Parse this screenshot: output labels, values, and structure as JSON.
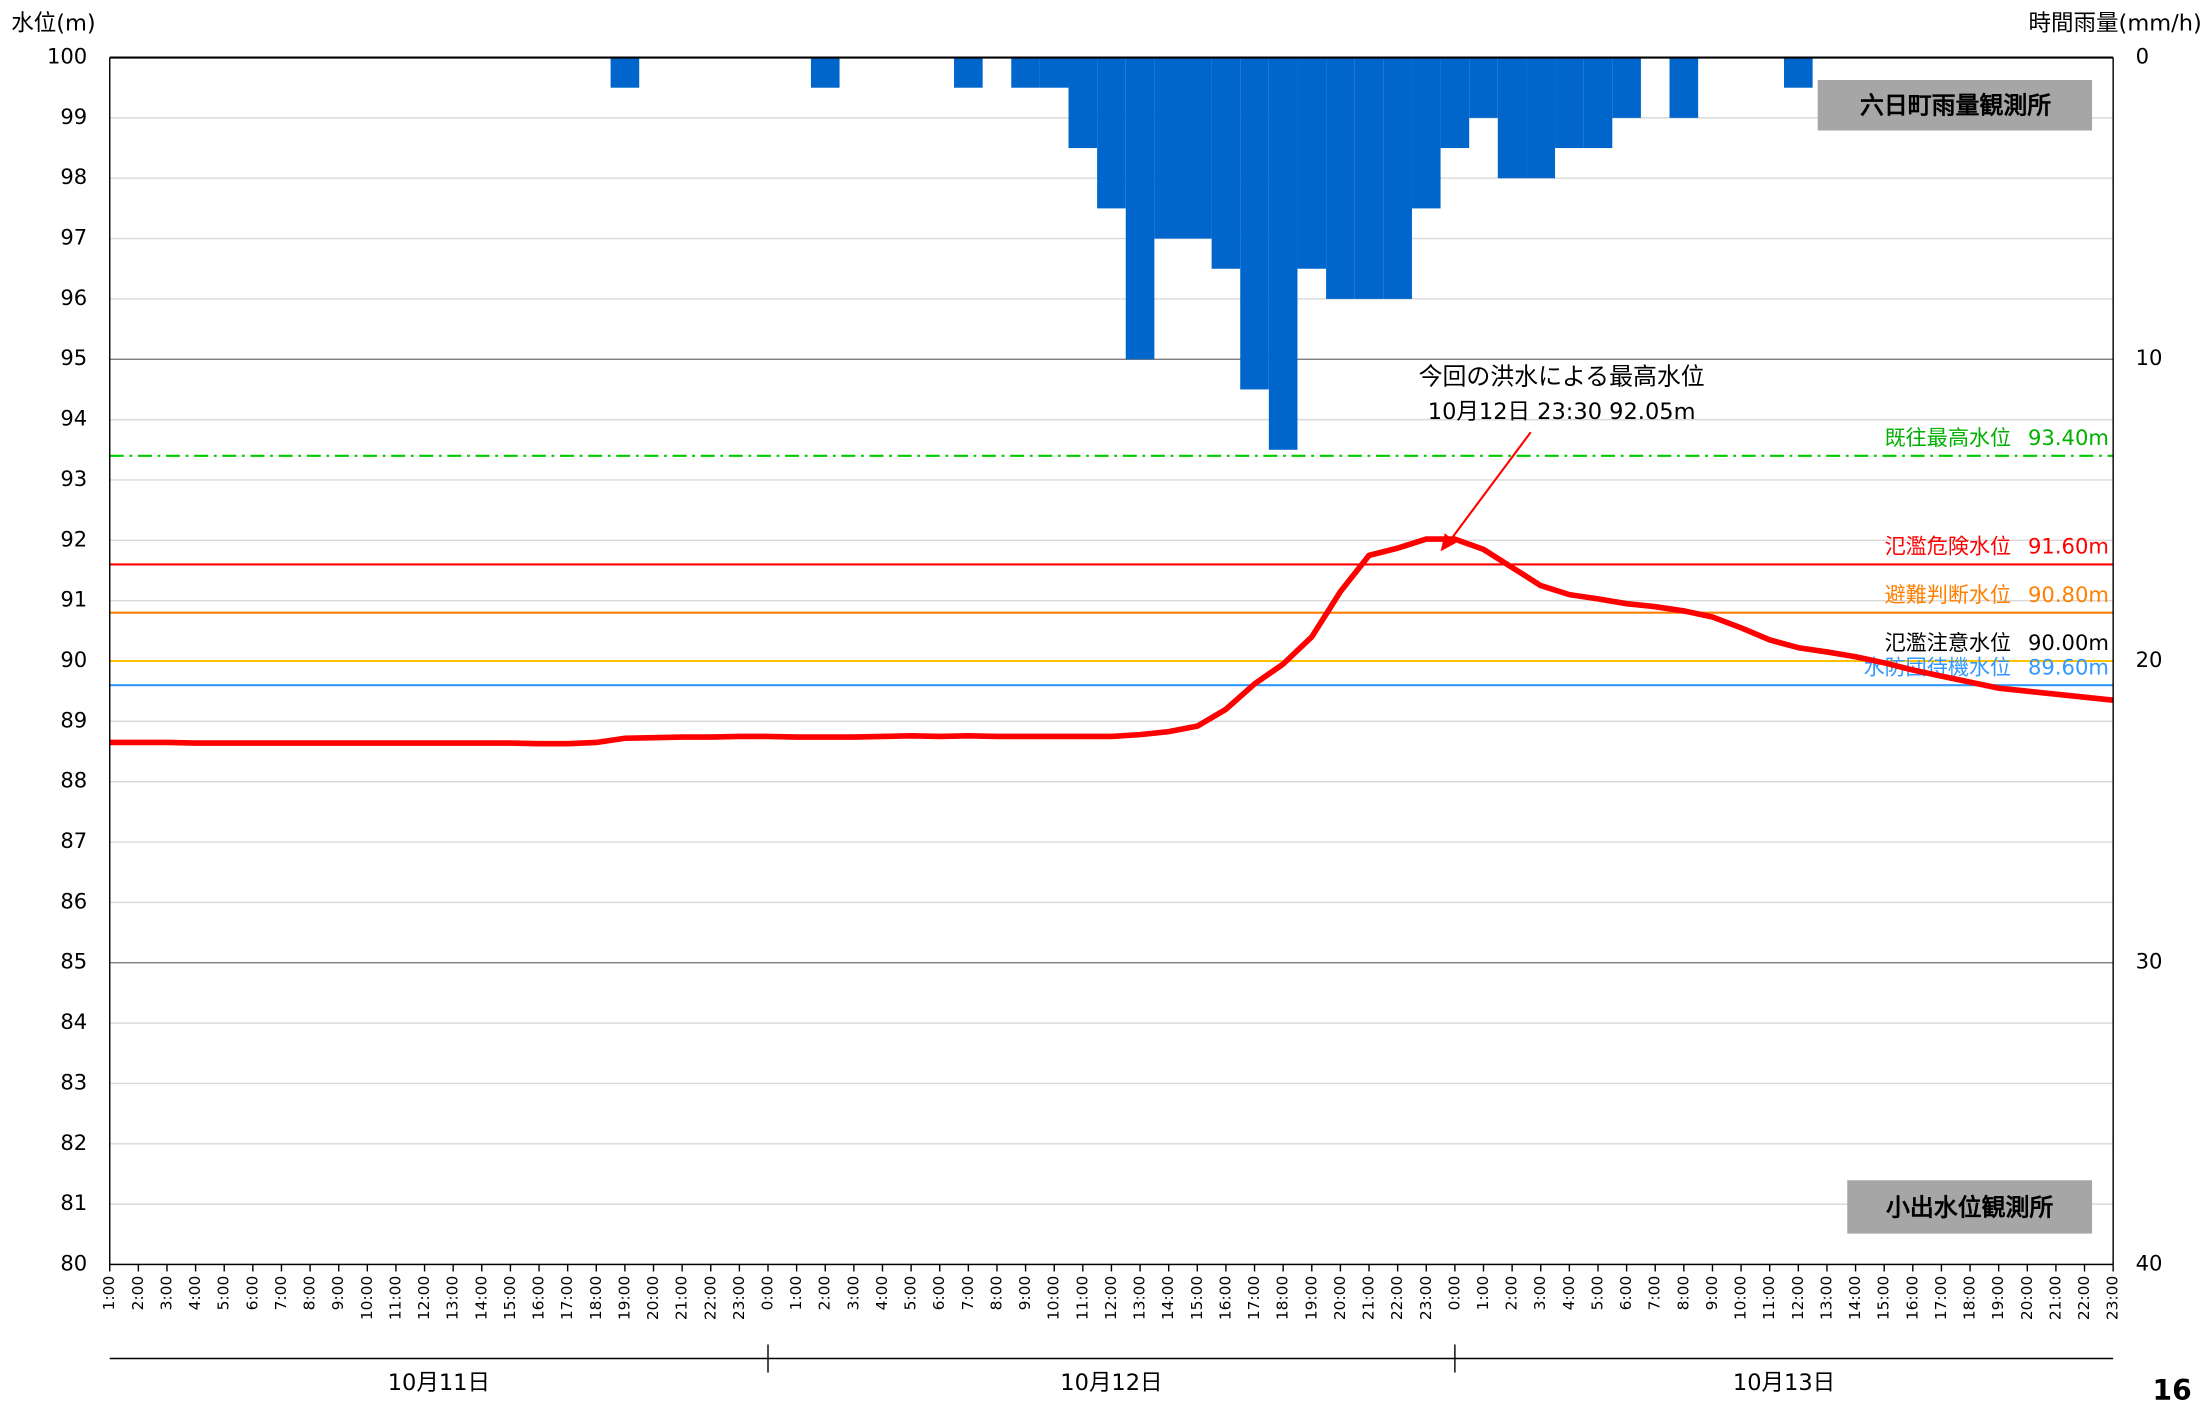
{
  "chart_data": {
    "type": "bar_line",
    "y_axis_title": "水位(m)",
    "y2_axis_title": "時間雨量(mm/h)",
    "categories": [
      "1:00",
      "2:00",
      "3:00",
      "4:00",
      "5:00",
      "6:00",
      "7:00",
      "8:00",
      "9:00",
      "10:00",
      "11:00",
      "12:00",
      "13:00",
      "14:00",
      "15:00",
      "16:00",
      "17:00",
      "18:00",
      "19:00",
      "20:00",
      "21:00",
      "22:00",
      "23:00",
      "0:00",
      "1:00",
      "2:00",
      "3:00",
      "4:00",
      "5:00",
      "6:00",
      "7:00",
      "8:00",
      "9:00",
      "10:00",
      "11:00",
      "12:00",
      "13:00",
      "14:00",
      "15:00",
      "16:00",
      "17:00",
      "18:00",
      "19:00",
      "20:00",
      "21:00",
      "22:00",
      "23:00",
      "0:00",
      "1:00",
      "2:00",
      "3:00",
      "4:00",
      "5:00",
      "6:00",
      "7:00",
      "8:00",
      "9:00",
      "10:00",
      "11:00",
      "12:00",
      "13:00",
      "14:00",
      "15:00",
      "16:00",
      "17:00",
      "18:00",
      "19:00",
      "20:00",
      "21:00",
      "22:00",
      "23:00"
    ],
    "date_groups": [
      "10月11日",
      "10月12日",
      "10月13日"
    ],
    "series": [
      {
        "type": "bar",
        "axis": "y2",
        "color": "#0066cc",
        "values": [
          0,
          0,
          0,
          0,
          0,
          0,
          0,
          0,
          0,
          0,
          0,
          0,
          0,
          0,
          0,
          0,
          0,
          0,
          1,
          0,
          0,
          0,
          0,
          0,
          0,
          1,
          0,
          0,
          0,
          0,
          1,
          0,
          1,
          1,
          3,
          5,
          10,
          6,
          6,
          7,
          11,
          13,
          7,
          8,
          8,
          8,
          5,
          3,
          2,
          4,
          4,
          3,
          3,
          2,
          0,
          2,
          0,
          0,
          0,
          1,
          0,
          0,
          0,
          0,
          0,
          0,
          0,
          0,
          0,
          0,
          0
        ]
      },
      {
        "type": "line",
        "color": "#ff0000",
        "values": [
          88.65,
          88.65,
          88.65,
          88.64,
          88.64,
          88.64,
          88.64,
          88.64,
          88.64,
          88.64,
          88.64,
          88.64,
          88.64,
          88.64,
          88.64,
          88.63,
          88.63,
          88.65,
          88.72,
          88.73,
          88.74,
          88.74,
          88.75,
          88.75,
          88.74,
          88.74,
          88.74,
          88.75,
          88.76,
          88.75,
          88.76,
          88.75,
          88.75,
          88.75,
          88.75,
          88.75,
          88.78,
          88.83,
          88.92,
          89.2,
          89.62,
          89.95,
          90.4,
          91.15,
          91.75,
          91.87,
          92.02,
          92.02,
          91.85,
          91.55,
          91.25,
          91.1,
          91.03,
          90.95,
          90.9,
          90.83,
          90.73,
          90.55,
          90.35,
          90.22,
          90.15,
          90.07,
          89.97,
          89.85,
          89.75,
          89.65,
          89.55,
          89.5,
          89.45,
          89.4,
          89.35
        ]
      }
    ],
    "ylim": [
      80,
      100
    ],
    "yticks": [
      80,
      81,
      82,
      83,
      84,
      85,
      86,
      87,
      88,
      89,
      90,
      91,
      92,
      93,
      94,
      95,
      96,
      97,
      98,
      99,
      100
    ],
    "y2lim": [
      0,
      40
    ],
    "y2ticks": [
      0,
      10,
      20,
      30,
      40
    ],
    "y2_inverted": true,
    "grid": true,
    "reference_lines": [
      {
        "name": "既往最高水位",
        "value": 93.4,
        "value_label": "93.40m",
        "color": "#00cc00",
        "text_color": "#00b000",
        "dash": "dashdot"
      },
      {
        "name": "氾濫危険水位",
        "value": 91.6,
        "value_label": "91.60m",
        "color": "#ff0000",
        "text_color": "#ff0000"
      },
      {
        "name": "避難判断水位",
        "value": 90.8,
        "value_label": "90.80m",
        "color": "#ff8000",
        "text_color": "#ff8000"
      },
      {
        "name": "氾濫注意水位",
        "value": 90.0,
        "value_label": "90.00m",
        "color": "#ffc000",
        "text_color": "#000000"
      },
      {
        "name": "水防団待機水位",
        "value": 89.6,
        "value_label": "89.60m",
        "color": "#3399ff",
        "text_color": "#3399ff"
      }
    ],
    "annotation": {
      "lines": [
        "今回の洪水による最高水位",
        "10月12日 23:30  92.05m"
      ],
      "value": 92.05,
      "color": "#ff0000"
    },
    "rain_station": "六日町雨量観測所",
    "level_station": "小出水位観測所"
  },
  "page_number": "16"
}
